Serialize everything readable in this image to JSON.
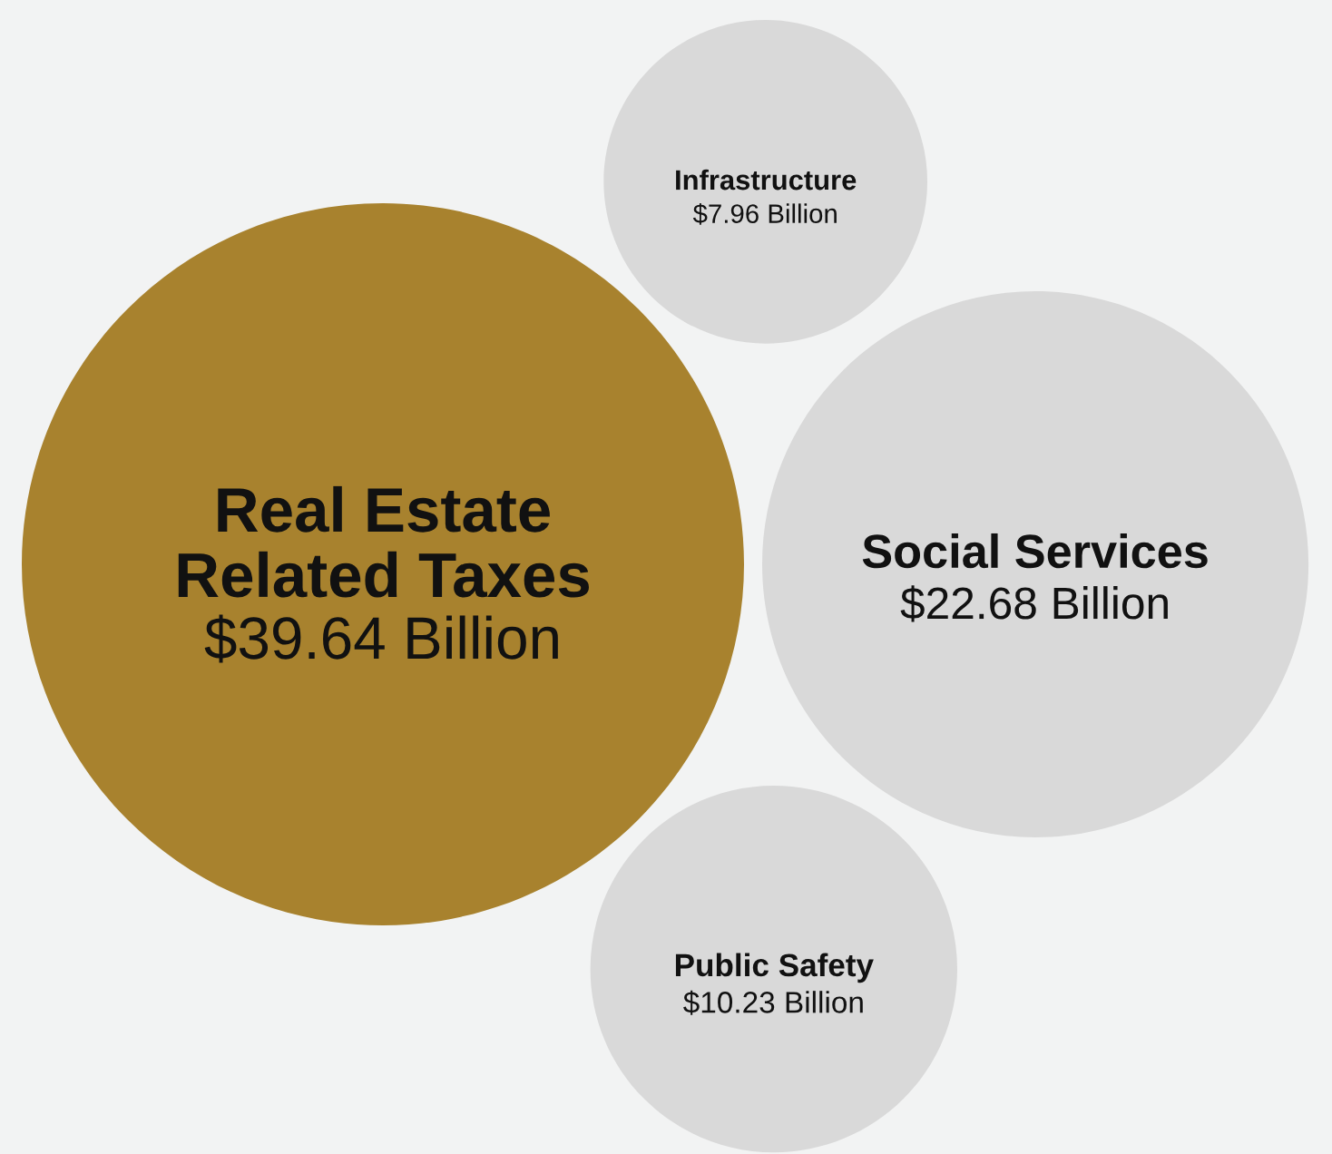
{
  "chart_data": {
    "type": "other",
    "categories": [
      "Real Estate Related Taxes",
      "Social Services",
      "Infrastructure",
      "Public Safety"
    ],
    "values": [
      39.64,
      22.68,
      7.96,
      10.23
    ],
    "value_labels": [
      "$39.64 Billion",
      "$22.68 Billion",
      "$7.96 Billion",
      "$10.23 Billion"
    ],
    "colors": [
      "#a8822e",
      "#d9d9d9",
      "#d9d9d9",
      "#d9d9d9"
    ]
  }
}
